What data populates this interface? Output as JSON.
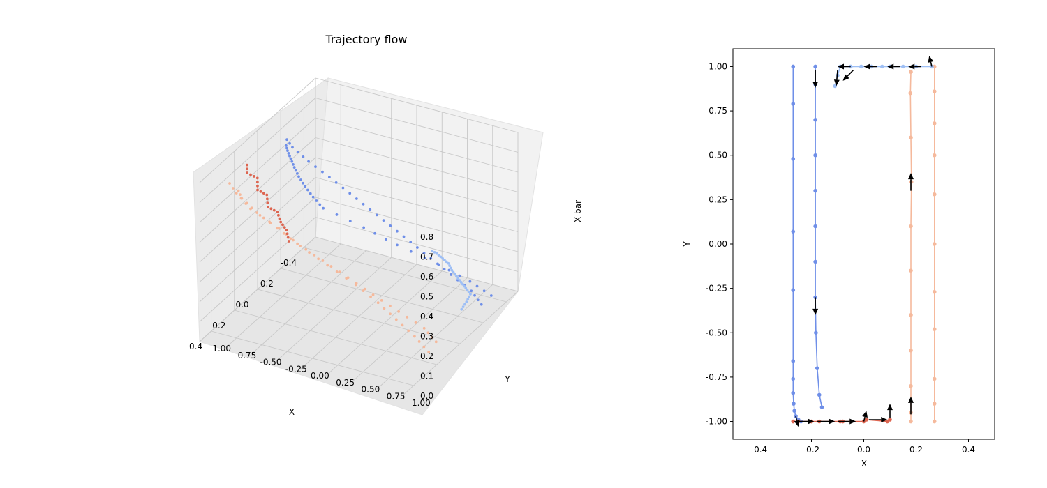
{
  "chart_data": [
    {
      "type": "scatter",
      "projection": "3d",
      "title": "Trajectory flow",
      "xlabel": "X",
      "ylabel": "Y",
      "zlabel": "X bar",
      "xlim": [
        -0.5,
        0.5
      ],
      "ylim": [
        -1.0,
        1.0
      ],
      "zlim": [
        0.0,
        0.8
      ],
      "xticks": [
        "-0.4",
        "-0.2",
        "0.0",
        "0.2",
        "0.4"
      ],
      "yticks": [
        "-1.00",
        "-0.75",
        "-0.50",
        "-0.25",
        "0.00",
        "0.25",
        "0.50",
        "0.75",
        "1.00"
      ],
      "zticks": [
        "0.0",
        "0.1",
        "0.2",
        "0.3",
        "0.4",
        "0.5",
        "0.6",
        "0.7",
        "0.8"
      ],
      "grid": true,
      "colors": {
        "blue_dark": "#6f8fe8",
        "blue_light": "#9ebff5",
        "salmon_light": "#f5b99c",
        "red": "#dd6550"
      }
    },
    {
      "type": "line",
      "xlabel": "X",
      "ylabel": "Y",
      "xlim": [
        -0.5,
        0.5
      ],
      "ylim": [
        -1.1,
        1.1
      ],
      "xticks": [
        "-0.4",
        "-0.2",
        "0.0",
        "0.2",
        "0.4"
      ],
      "yticks": [
        "1.00",
        "0.75",
        "0.50",
        "0.25",
        "0.00",
        "-0.25",
        "-0.50",
        "-0.75",
        "-1.00"
      ],
      "series": [
        {
          "color": "#6f8fe8",
          "x": [
            -0.27,
            -0.27,
            -0.27,
            -0.27,
            -0.27,
            -0.27,
            -0.27,
            -0.27,
            -0.268,
            -0.265,
            -0.26,
            -0.25,
            -0.24
          ],
          "y": [
            1.0,
            0.79,
            0.48,
            0.07,
            -0.26,
            -0.66,
            -0.76,
            -0.84,
            -0.9,
            -0.94,
            -0.97,
            -0.99,
            -1.0
          ]
        },
        {
          "color": "#6f8fe8",
          "x": [
            -0.185,
            -0.185,
            -0.185,
            -0.185,
            -0.185,
            -0.185,
            -0.185,
            -0.185,
            -0.183,
            -0.178,
            -0.17,
            -0.16
          ],
          "y": [
            1.0,
            0.9,
            0.7,
            0.5,
            0.3,
            0.1,
            -0.1,
            -0.3,
            -0.5,
            -0.7,
            -0.85,
            -0.92
          ]
        },
        {
          "color": "#f5b99c",
          "x": [
            0.18,
            0.178,
            0.18,
            0.182,
            0.18,
            0.18,
            0.18,
            0.18,
            0.18,
            0.18,
            0.18
          ],
          "y": [
            0.97,
            0.85,
            0.6,
            0.35,
            0.1,
            -0.15,
            -0.4,
            -0.6,
            -0.8,
            -0.95,
            -1.0
          ]
        },
        {
          "color": "#f5b99c",
          "x": [
            0.27,
            0.27,
            0.27,
            0.27,
            0.27,
            0.27,
            0.27,
            0.27,
            0.27,
            0.27,
            0.27
          ],
          "y": [
            1.0,
            0.86,
            0.68,
            0.5,
            0.28,
            0.0,
            -0.27,
            -0.48,
            -0.76,
            -0.9,
            -1.0
          ]
        },
        {
          "color": "#9ebff5",
          "x": [
            -0.11,
            -0.1,
            -0.09,
            -0.05,
            -0.01,
            0.03,
            0.07,
            0.1,
            0.15,
            0.2,
            0.26
          ],
          "y": [
            0.89,
            0.95,
            1.0,
            1.0,
            1.0,
            1.0,
            1.0,
            1.0,
            1.0,
            1.0,
            1.0
          ]
        },
        {
          "color": "#dd6550",
          "x": [
            -0.27,
            -0.25,
            -0.2,
            -0.17,
            -0.09,
            -0.08,
            0.0,
            0.01,
            0.09,
            0.1
          ],
          "y": [
            -1.0,
            -1.0,
            -1.0,
            -1.0,
            -1.0,
            -1.0,
            -1.0,
            -0.99,
            -1.0,
            -0.99
          ]
        }
      ],
      "arrows": [
        {
          "x": -0.185,
          "y": 0.98,
          "dx": 0.0,
          "dy": -0.1
        },
        {
          "x": -0.1,
          "y": 0.98,
          "dx": -0.005,
          "dy": -0.09
        },
        {
          "x": -0.05,
          "y": 1.0,
          "dx": -0.05,
          "dy": 0.0
        },
        {
          "x": -0.04,
          "y": 0.98,
          "dx": -0.04,
          "dy": -0.06
        },
        {
          "x": 0.05,
          "y": 1.0,
          "dx": -0.05,
          "dy": 0.0
        },
        {
          "x": 0.14,
          "y": 1.0,
          "dx": -0.05,
          "dy": 0.0
        },
        {
          "x": 0.22,
          "y": 1.0,
          "dx": -0.05,
          "dy": 0.0
        },
        {
          "x": 0.26,
          "y": 1.0,
          "dx": -0.01,
          "dy": 0.06
        },
        {
          "x": 0.18,
          "y": 0.3,
          "dx": 0.0,
          "dy": 0.1
        },
        {
          "x": -0.185,
          "y": -0.3,
          "dx": 0.0,
          "dy": -0.1
        },
        {
          "x": 0.18,
          "y": -0.96,
          "dx": 0.0,
          "dy": 0.1
        },
        {
          "x": -0.26,
          "y": -1.0,
          "dx": 0.07,
          "dy": 0.0
        },
        {
          "x": -0.26,
          "y": -0.97,
          "dx": 0.01,
          "dy": -0.06
        },
        {
          "x": -0.18,
          "y": -1.0,
          "dx": 0.07,
          "dy": 0.0
        },
        {
          "x": -0.1,
          "y": -1.0,
          "dx": 0.07,
          "dy": 0.0
        },
        {
          "x": 0.0,
          "y": -1.0,
          "dx": 0.01,
          "dy": 0.06
        },
        {
          "x": 0.02,
          "y": -0.99,
          "dx": 0.07,
          "dy": 0.0
        },
        {
          "x": 0.1,
          "y": -0.98,
          "dx": 0.0,
          "dy": 0.08
        }
      ]
    }
  ]
}
